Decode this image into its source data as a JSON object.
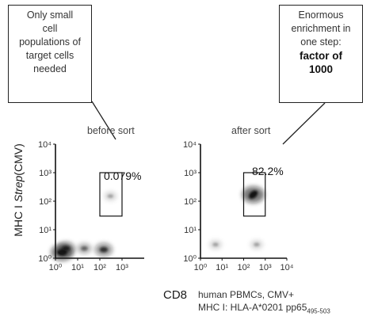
{
  "callouts": {
    "left": {
      "lines": [
        "Only small",
        "cell",
        "populations of",
        "target cells",
        "needed"
      ]
    },
    "right": {
      "lines": [
        "Enormous",
        "enrichment in",
        "one step:"
      ],
      "bold_lines": [
        "factor of",
        "1000"
      ]
    }
  },
  "chart_data": [
    {
      "type": "scatter",
      "title": "before sort",
      "gate_percentage": "0.079%",
      "log_scale": true,
      "xlim": [
        1,
        10000
      ],
      "ylim": [
        1,
        10000
      ],
      "x_ticks": [
        "10⁰",
        "10¹",
        "10²",
        "10³"
      ],
      "y_ticks": [
        "10⁰",
        "10¹",
        "10²",
        "10³",
        "10⁴"
      ],
      "gate": {
        "x": [
          100,
          1000
        ],
        "y": [
          30,
          1000
        ]
      },
      "populations": [
        {
          "cx": 2,
          "cy": 1.6,
          "density": "very high"
        },
        {
          "cx": 3,
          "cy": 2.2,
          "density": "high"
        },
        {
          "cx": 20,
          "cy": 2.2,
          "density": "medium"
        },
        {
          "cx": 150,
          "cy": 2.0,
          "density": "high"
        },
        {
          "cx": 300,
          "cy": 150,
          "density": "low"
        }
      ]
    },
    {
      "type": "scatter",
      "title": "after sort",
      "gate_percentage": "82.2%",
      "log_scale": true,
      "xlim": [
        1,
        10000
      ],
      "ylim": [
        1,
        10000
      ],
      "x_ticks": [
        "10⁰",
        "10¹",
        "10²",
        "10³",
        "10⁴"
      ],
      "y_ticks": [
        "10⁰",
        "10¹",
        "10²",
        "10³",
        "10⁴"
      ],
      "gate": {
        "x": [
          100,
          1000
        ],
        "y": [
          30,
          1000
        ]
      },
      "populations": [
        {
          "cx": 280,
          "cy": 170,
          "density": "very high"
        },
        {
          "cx": 5,
          "cy": 3,
          "density": "low"
        },
        {
          "cx": 400,
          "cy": 3,
          "density": "low"
        }
      ]
    }
  ],
  "axis": {
    "ylabel_prefix": "MHC I ",
    "ylabel_italic": "Strep",
    "ylabel_suffix": "(CMV)",
    "xlabel": "CD8"
  },
  "footnote": {
    "line1": "human PBMCs, CMV+",
    "line2": "MHC I: HLA-A*0201 pp65",
    "code": "495-503"
  },
  "colors": {
    "ink": "#1a1a1a",
    "plot_dark": "#111111",
    "callout_border": "#222222"
  }
}
